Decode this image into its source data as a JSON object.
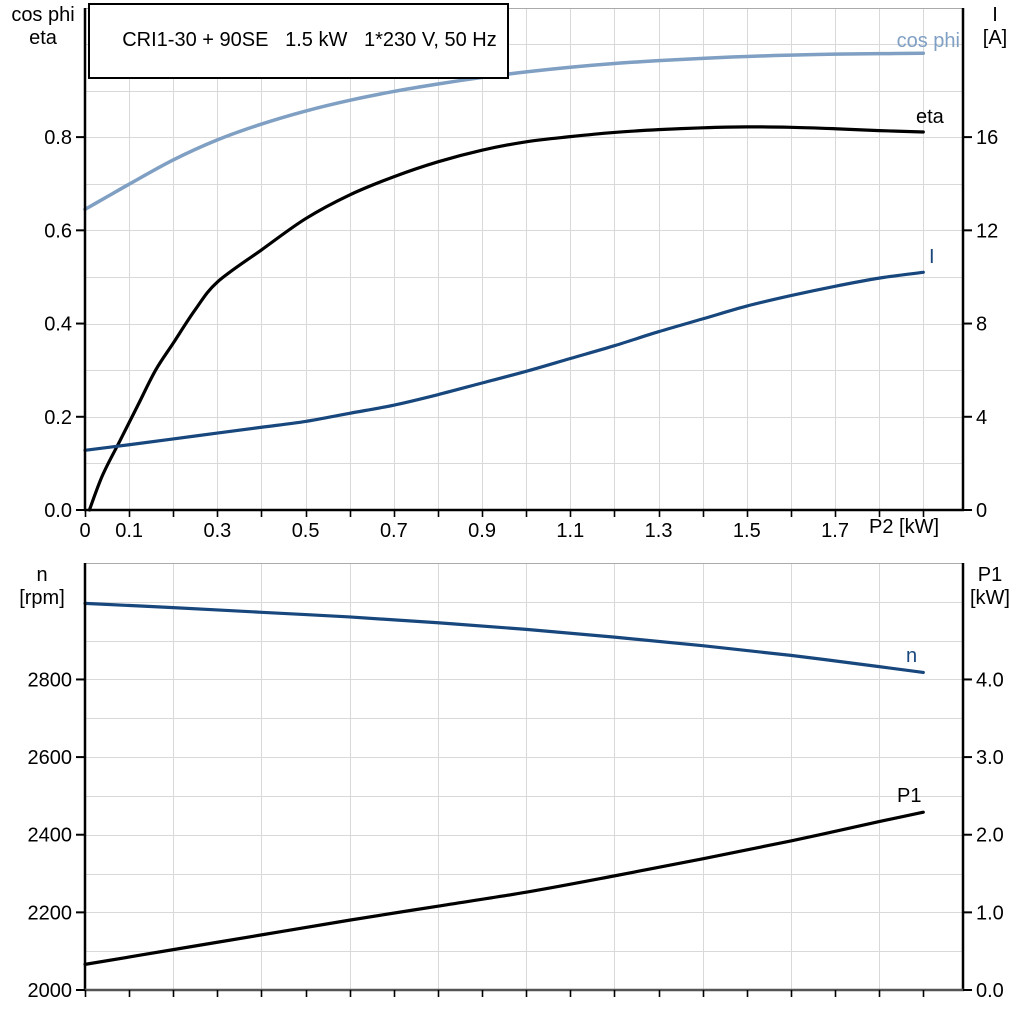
{
  "title": "CRI1-30 + 90SE   1.5 kW   1*230 V, 50 Hz",
  "colors": {
    "black": "#000000",
    "dark_blue": "#17477d",
    "light_blue": "#7f9fc3",
    "grid": "#d9d9d9",
    "frame_top": "#aaaaaa",
    "frame_bottom_axis": "#555555",
    "axis": "#000000"
  },
  "labels": {
    "top_left": [
      "cos phi",
      "eta"
    ],
    "top_right": [
      "I",
      "[A]"
    ],
    "bottom_left": [
      "n",
      "[rpm]"
    ],
    "bottom_right": [
      "P1",
      "[kW]"
    ]
  },
  "chart_data": [
    {
      "type": "line",
      "title": "CRI1-30 + 90SE   1.5 kW   1*230 V, 50 Hz",
      "xlabel": "P2 [kW]",
      "x_range": [
        0,
        1.99
      ],
      "x_grid_step": 0.1,
      "x_tick_step": 0.1,
      "x_tick_labels": {
        "values": [
          0,
          0.1,
          0.3,
          0.5,
          0.7,
          0.9,
          1.1,
          1.3,
          1.5,
          1.7
        ],
        "texts": [
          "0",
          "0.1",
          "0.3",
          "0.5",
          "0.7",
          "0.9",
          "1.1",
          "1.3",
          "1.5",
          "1.7"
        ]
      },
      "grid": true,
      "legend_position": "inline-right",
      "y_left": {
        "label": "cos phi / eta",
        "range": [
          0,
          1.077
        ],
        "grid_step": 0.1,
        "ticks": [
          0,
          0.2,
          0.4,
          0.6,
          0.8
        ],
        "tick_texts": [
          "0.0",
          "0.2",
          "0.4",
          "0.6",
          "0.8"
        ]
      },
      "y_right": {
        "label": "I [A]",
        "range": [
          0,
          21.54
        ],
        "ticks": [
          0,
          4,
          8,
          12,
          16
        ],
        "tick_texts": [
          "0",
          "4",
          "8",
          "12",
          "16"
        ]
      },
      "series": [
        {
          "name": "cos phi",
          "axis": "left",
          "color": "#7f9fc3",
          "width": 3.5,
          "x": [
            0,
            0.05,
            0.1,
            0.2,
            0.3,
            0.4,
            0.5,
            0.6,
            0.7,
            0.8,
            0.9,
            1.0,
            1.1,
            1.2,
            1.3,
            1.4,
            1.5,
            1.6,
            1.7,
            1.8,
            1.9
          ],
          "values": [
            0.645,
            0.672,
            0.699,
            0.751,
            0.794,
            0.828,
            0.856,
            0.879,
            0.898,
            0.914,
            0.928,
            0.94,
            0.95,
            0.958,
            0.964,
            0.969,
            0.973,
            0.976,
            0.978,
            0.979,
            0.98
          ]
        },
        {
          "name": "eta",
          "axis": "left",
          "color": "#000000",
          "width": 3.2,
          "x": [
            0.01,
            0.04,
            0.08,
            0.12,
            0.16,
            0.2,
            0.25,
            0.3,
            0.4,
            0.5,
            0.6,
            0.7,
            0.8,
            0.9,
            1.0,
            1.1,
            1.2,
            1.3,
            1.4,
            1.5,
            1.6,
            1.7,
            1.8,
            1.9
          ],
          "values": [
            0.0,
            0.075,
            0.15,
            0.225,
            0.3,
            0.358,
            0.43,
            0.489,
            0.558,
            0.625,
            0.676,
            0.715,
            0.747,
            0.772,
            0.79,
            0.801,
            0.81,
            0.816,
            0.82,
            0.822,
            0.821,
            0.818,
            0.814,
            0.811
          ]
        },
        {
          "name": "I",
          "axis": "right",
          "color": "#17477d",
          "width": 3.2,
          "x": [
            0,
            0.1,
            0.2,
            0.3,
            0.4,
            0.5,
            0.6,
            0.7,
            0.8,
            0.9,
            1.0,
            1.1,
            1.2,
            1.3,
            1.4,
            1.5,
            1.6,
            1.7,
            1.8,
            1.9
          ],
          "values": [
            2.56,
            2.8,
            3.05,
            3.3,
            3.55,
            3.8,
            4.15,
            4.5,
            4.95,
            5.45,
            5.95,
            6.5,
            7.05,
            7.65,
            8.2,
            8.75,
            9.2,
            9.6,
            9.95,
            10.2
          ]
        }
      ]
    },
    {
      "type": "line",
      "title": "",
      "xlabel": "",
      "x_range": [
        0,
        1.99
      ],
      "x_grid_step": 0.2,
      "x_tick_step": 0.1,
      "x_tick_labels": {
        "values": [],
        "texts": []
      },
      "grid": true,
      "legend_position": "inline-right",
      "y_left": {
        "label": "n [rpm]",
        "range": [
          2000,
          3100
        ],
        "grid_step": 100,
        "ticks": [
          2000,
          2200,
          2400,
          2600,
          2800
        ],
        "tick_texts": [
          "2000",
          "2200",
          "2400",
          "2600",
          "2800"
        ]
      },
      "y_right": {
        "label": "P1 [kW]",
        "range": [
          0,
          5.5
        ],
        "ticks": [
          0,
          1,
          2,
          3,
          4
        ],
        "tick_texts": [
          "0.0",
          "1.0",
          "2.0",
          "3.0",
          "4.0"
        ]
      },
      "series": [
        {
          "name": "n",
          "axis": "left",
          "color": "#17477d",
          "width": 3.2,
          "x": [
            0,
            0.2,
            0.4,
            0.6,
            0.8,
            1.0,
            1.2,
            1.4,
            1.6,
            1.8,
            1.9
          ],
          "values": [
            2996,
            2985,
            2973,
            2961,
            2946,
            2929,
            2909,
            2887,
            2862,
            2833,
            2818
          ]
        },
        {
          "name": "P1",
          "axis": "right",
          "color": "#000000",
          "width": 3.2,
          "x": [
            0,
            0.2,
            0.4,
            0.6,
            0.8,
            1.0,
            1.2,
            1.4,
            1.6,
            1.8,
            1.9
          ],
          "values": [
            0.33,
            0.52,
            0.71,
            0.9,
            1.08,
            1.26,
            1.47,
            1.69,
            1.92,
            2.17,
            2.29
          ]
        }
      ]
    }
  ]
}
